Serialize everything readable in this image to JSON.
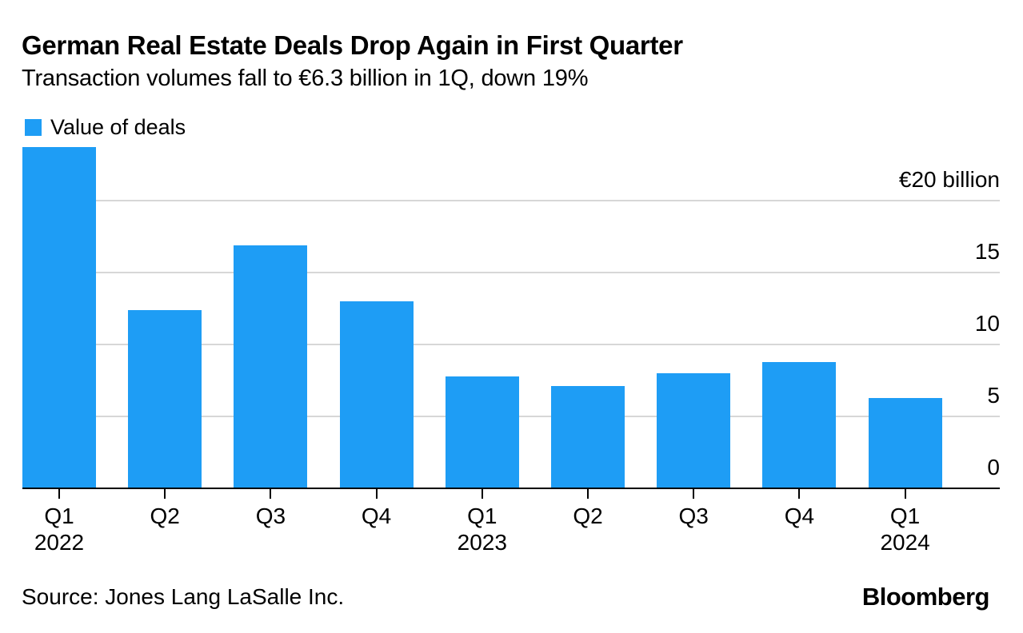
{
  "chart_data": {
    "type": "bar",
    "title": "German Real Estate Deals Drop Again in First Quarter",
    "subtitle": "Transaction volumes fall to €6.3 billion in 1Q, down 19%",
    "xlabel": "",
    "ylabel": "",
    "unit": "€ billion",
    "categories": [
      "Q1 2022",
      "Q2 2022",
      "Q3 2022",
      "Q4 2022",
      "Q1 2023",
      "Q2 2023",
      "Q3 2023",
      "Q4 2023",
      "Q1 2024"
    ],
    "series": [
      {
        "name": "Value of deals",
        "values": [
          23.7,
          12.4,
          16.9,
          13.0,
          7.8,
          7.1,
          8.0,
          8.8,
          6.3
        ]
      }
    ],
    "x_tick_labels": [
      {
        "quarter": "Q1",
        "year": "2022"
      },
      {
        "quarter": "Q2",
        "year": ""
      },
      {
        "quarter": "Q3",
        "year": ""
      },
      {
        "quarter": "Q4",
        "year": ""
      },
      {
        "quarter": "Q1",
        "year": "2023"
      },
      {
        "quarter": "Q2",
        "year": ""
      },
      {
        "quarter": "Q3",
        "year": ""
      },
      {
        "quarter": "Q4",
        "year": ""
      },
      {
        "quarter": "Q1",
        "year": "2024"
      }
    ],
    "y_axis": {
      "ylim": [
        0,
        20
      ],
      "gridlines": [
        5,
        10,
        15,
        20
      ],
      "ticks": [
        {
          "value": 0,
          "label": "0"
        },
        {
          "value": 5,
          "label": "5"
        },
        {
          "value": 10,
          "label": "10"
        },
        {
          "value": 15,
          "label": "15"
        },
        {
          "value": 20,
          "label": "€20 billion"
        }
      ]
    },
    "grid": "horizontal",
    "legend_position": "top-left",
    "colors": {
      "bar": "#1e9df5",
      "gridline": "#d7d7d7",
      "axis": "#000000",
      "text": "#000000"
    }
  },
  "footer": {
    "source": "Source: Jones Lang LaSalle Inc.",
    "brand": "Bloomberg"
  }
}
